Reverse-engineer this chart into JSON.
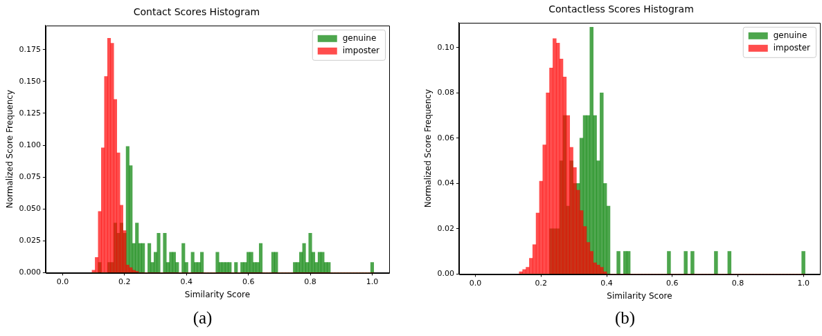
{
  "chart_data": [
    {
      "type": "histogram",
      "title": "Contact Scores Histogram",
      "xlabel": "Similarity Score",
      "ylabel": "Normalized Score Frequency",
      "legend": "top right",
      "annotations": [
        "(a)"
      ],
      "xlim": [
        -0.055,
        1.055
      ],
      "ylim": [
        0,
        0.194
      ],
      "xticks": [
        {
          "value": 0,
          "label": "0.0"
        },
        {
          "value": 0.2,
          "label": "0.2"
        },
        {
          "value": 0.4,
          "label": "0.4"
        },
        {
          "value": 0.6,
          "label": "0.6"
        },
        {
          "value": 0.8,
          "label": "0.8"
        },
        {
          "value": 1,
          "label": "1.0"
        }
      ],
      "yticks": [
        {
          "value": 0,
          "label": "0.000"
        },
        {
          "value": 0.025,
          "label": "0.025"
        },
        {
          "value": 0.05,
          "label": "0.050"
        },
        {
          "value": 0.075,
          "label": "0.075"
        },
        {
          "value": 0.1,
          "label": "0.100"
        },
        {
          "value": 0.125,
          "label": "0.125"
        },
        {
          "value": 0.15,
          "label": "0.150"
        },
        {
          "value": 0.175,
          "label": "0.175"
        }
      ],
      "bins": [
        0.095,
        0.105,
        0.115,
        0.125,
        0.135,
        0.145,
        0.155,
        0.165,
        0.175,
        0.185,
        0.195,
        0.205,
        0.215,
        0.225,
        0.235,
        0.245,
        0.255,
        0.265,
        0.275,
        0.285,
        0.295,
        0.305,
        0.315,
        0.325,
        0.335,
        0.345,
        0.355,
        0.365,
        0.375,
        0.385,
        0.395,
        0.405,
        0.415,
        0.425,
        0.435,
        0.445,
        0.455,
        0.465,
        0.475,
        0.485,
        0.495,
        0.505,
        0.515,
        0.525,
        0.535,
        0.545,
        0.555,
        0.565,
        0.575,
        0.585,
        0.595,
        0.605,
        0.615,
        0.625,
        0.635,
        0.645,
        0.655,
        0.665,
        0.675,
        0.685,
        0.695,
        0.705,
        0.715,
        0.725,
        0.735,
        0.745,
        0.755,
        0.765,
        0.775,
        0.785,
        0.795,
        0.805,
        0.815,
        0.825,
        0.835,
        0.845,
        0.855,
        0.865,
        0.875,
        0.885,
        0.895,
        0.905,
        0.915,
        0.925,
        0.935,
        0.945,
        0.955,
        0.965,
        0.975,
        0.985,
        0.995,
        1.005
      ],
      "series": [
        {
          "name": "genuine",
          "color": "#4da64d",
          "values": [
            0,
            0,
            0.008,
            0,
            0,
            0.008,
            0.008,
            0.039,
            0.031,
            0.039,
            0.031,
            0.099,
            0.084,
            0.023,
            0.039,
            0.023,
            0.023,
            0,
            0.023,
            0.008,
            0.016,
            0.031,
            0,
            0.031,
            0.008,
            0.016,
            0.016,
            0.008,
            0,
            0.023,
            0.008,
            0,
            0.016,
            0.008,
            0.008,
            0.016,
            0,
            0,
            0,
            0,
            0.016,
            0.008,
            0.008,
            0.008,
            0.008,
            0,
            0.008,
            0,
            0.008,
            0.008,
            0.016,
            0.016,
            0.008,
            0.008,
            0.023,
            0,
            0,
            0,
            0.016,
            0.016,
            0,
            0,
            0,
            0,
            0,
            0.008,
            0.008,
            0.016,
            0.023,
            0.008,
            0.031,
            0.016,
            0.008,
            0.016,
            0.016,
            0.008,
            0.008,
            0,
            0,
            0,
            0,
            0,
            0,
            0,
            0,
            0,
            0,
            0,
            0,
            0,
            0.008
          ]
        },
        {
          "name": "imposter",
          "color": "#ff4d4d",
          "values": [
            0.002,
            0.012,
            0.048,
            0.098,
            0.154,
            0.184,
            0.18,
            0.136,
            0.094,
            0.053,
            0.033,
            0.006,
            0.004,
            0.002,
            0.001,
            0,
            0,
            0,
            0,
            0,
            0,
            0,
            0,
            0,
            0,
            0,
            0,
            0,
            0,
            0,
            0,
            0,
            0,
            0,
            0,
            0,
            0,
            0,
            0,
            0,
            0,
            0,
            0,
            0,
            0,
            0,
            0,
            0,
            0,
            0,
            0,
            0,
            0,
            0,
            0,
            0,
            0,
            0,
            0,
            0,
            0,
            0,
            0,
            0,
            0,
            0,
            0,
            0,
            0,
            0,
            0,
            0,
            0,
            0,
            0,
            0,
            0,
            0,
            0,
            0,
            0,
            0,
            0,
            0,
            0,
            0,
            0,
            0,
            0,
            0,
            0
          ]
        }
      ]
    },
    {
      "type": "histogram",
      "title": "Contactless Scores Histogram",
      "xlabel": "Similarity Score",
      "ylabel": "Normalized Score Frequency",
      "legend": "top right",
      "annotations": [
        "(b)"
      ],
      "xlim": [
        -0.05,
        1.05
      ],
      "ylim": [
        0,
        0.111
      ],
      "xticks": [
        {
          "value": 0,
          "label": "0.0"
        },
        {
          "value": 0.2,
          "label": "0.2"
        },
        {
          "value": 0.4,
          "label": "0.4"
        },
        {
          "value": 0.6,
          "label": "0.6"
        },
        {
          "value": 0.8,
          "label": "0.8"
        },
        {
          "value": 1,
          "label": "1.0"
        }
      ],
      "yticks": [
        {
          "value": 0,
          "label": "0.00"
        },
        {
          "value": 0.02,
          "label": "0.02"
        },
        {
          "value": 0.04,
          "label": "0.04"
        },
        {
          "value": 0.06,
          "label": "0.06"
        },
        {
          "value": 0.08,
          "label": "0.08"
        },
        {
          "value": 0.1,
          "label": "0.10"
        }
      ],
      "bins": [
        0.1335,
        0.1438,
        0.154,
        0.1643,
        0.1745,
        0.1848,
        0.195,
        0.2053,
        0.2155,
        0.2258,
        0.236,
        0.2463,
        0.2565,
        0.2668,
        0.277,
        0.2873,
        0.2975,
        0.3078,
        0.318,
        0.3283,
        0.3385,
        0.3488,
        0.359,
        0.3693,
        0.3795,
        0.3898,
        0.4,
        0.4103,
        0.4205,
        0.4308,
        0.441,
        0.4513,
        0.4615,
        0.4718,
        0.482,
        0.4923,
        0.5025,
        0.5128,
        0.523,
        0.5333,
        0.5435,
        0.5538,
        0.564,
        0.5743,
        0.5845,
        0.5948,
        0.605,
        0.6153,
        0.6255,
        0.6358,
        0.646,
        0.6563,
        0.6665,
        0.6768,
        0.687,
        0.6973,
        0.7075,
        0.7178,
        0.728,
        0.7383,
        0.7485,
        0.7588,
        0.769,
        0.7793,
        0.7895,
        0.7998,
        0.81,
        0.8203,
        0.8305,
        0.8408,
        0.851,
        0.8613,
        0.8715,
        0.8818,
        0.892,
        0.9023,
        0.9125,
        0.9228,
        0.933,
        0.9433,
        0.9535,
        0.9638,
        0.974,
        0.9843,
        0.9945,
        1.0048
      ],
      "series": [
        {
          "name": "genuine",
          "color": "#4da64d",
          "values": [
            0,
            0,
            0,
            0,
            0,
            0,
            0,
            0,
            0,
            0.02,
            0.02,
            0.02,
            0.05,
            0.07,
            0.03,
            0.05,
            0.04,
            0.04,
            0.06,
            0.07,
            0.07,
            0.109,
            0.07,
            0.05,
            0.08,
            0.04,
            0.03,
            0,
            0,
            0.01,
            0,
            0.01,
            0.01,
            0,
            0,
            0,
            0,
            0,
            0,
            0,
            0,
            0,
            0,
            0,
            0.01,
            0,
            0,
            0,
            0,
            0.01,
            0,
            0.01,
            0,
            0,
            0,
            0,
            0,
            0,
            0.01,
            0,
            0,
            0,
            0.01,
            0,
            0,
            0,
            0,
            0,
            0,
            0,
            0,
            0,
            0,
            0,
            0,
            0,
            0,
            0,
            0,
            0,
            0,
            0,
            0,
            0,
            0.01
          ]
        },
        {
          "name": "imposter",
          "color": "#ff4d4d",
          "values": [
            0.001,
            0.002,
            0.003,
            0.007,
            0.013,
            0.027,
            0.041,
            0.057,
            0.08,
            0.091,
            0.104,
            0.102,
            0.095,
            0.087,
            0.07,
            0.056,
            0.047,
            0.037,
            0.028,
            0.021,
            0.014,
            0.01,
            0.005,
            0.004,
            0.003,
            0.001,
            0,
            0,
            0,
            0,
            0,
            0,
            0,
            0,
            0,
            0,
            0,
            0,
            0,
            0,
            0,
            0,
            0,
            0,
            0,
            0,
            0,
            0,
            0,
            0,
            0,
            0,
            0,
            0,
            0,
            0,
            0,
            0,
            0,
            0,
            0,
            0,
            0,
            0,
            0,
            0,
            0,
            0,
            0,
            0,
            0,
            0,
            0,
            0,
            0,
            0,
            0,
            0,
            0,
            0,
            0,
            0,
            0,
            0,
            0
          ]
        }
      ]
    }
  ]
}
